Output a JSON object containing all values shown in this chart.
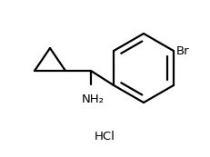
{
  "background_color": "#ffffff",
  "line_color": "#000000",
  "line_width": 1.6,
  "text_color": "#000000",
  "label_nh2": "NH₂",
  "label_hcl": "HCl",
  "label_br": "Br",
  "figsize": [
    2.31,
    1.73
  ],
  "dpi": 100,
  "xlim": [
    0,
    231
  ],
  "ylim": [
    0,
    173
  ]
}
